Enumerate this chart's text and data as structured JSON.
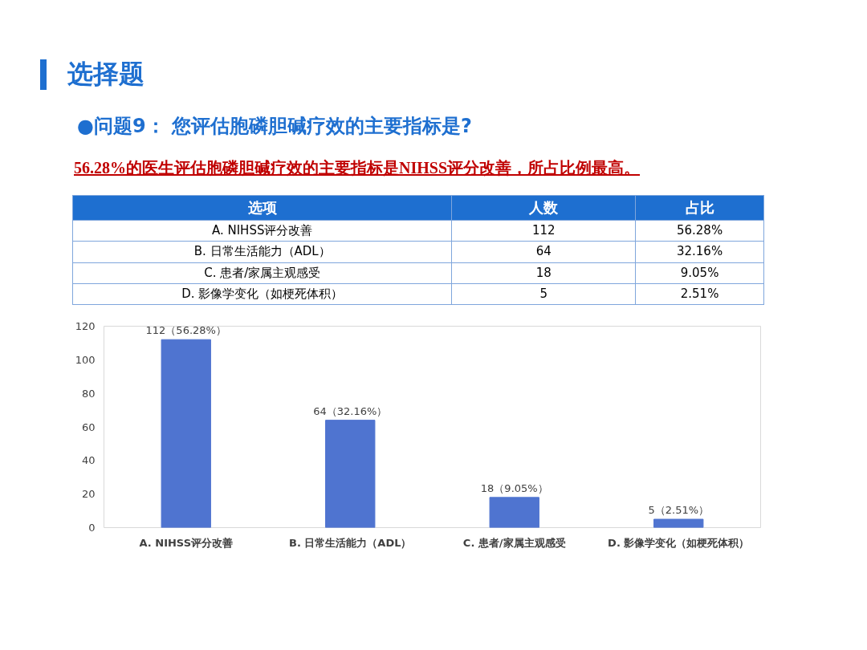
{
  "chart_data": {
    "type": "bar",
    "title": "选择题",
    "subtitle": "●问题9：  您评估胞磷胆碱疗效的主要指标是?",
    "annotations": [
      "56.28%的医生评估胞磷胆碱疗效的主要指标是NIHSS评分改善，所占比例最高。",
      "选项",
      "人数",
      "占比",
      "112",
      "64",
      "18",
      "5",
      "56.28%",
      "32.16%",
      "9.05%",
      "2.51%"
    ],
    "categories": [
      "A. NIHSS评分改善",
      "B. 日常生活能力（ADL）",
      "C. 患者/家属主观感受",
      "D. 影像学变化（如梗死体积）"
    ],
    "values": [
      112,
      64,
      18,
      5
    ],
    "value_labels": [
      "112（56.28%）",
      "64（32.16%）",
      "18（9.05%）",
      "5（2.51%）"
    ],
    "color": "#4f74d0",
    "ylim": [
      0,
      120
    ],
    "yticks": [
      0,
      20,
      40,
      60,
      80,
      100,
      120
    ]
  }
}
